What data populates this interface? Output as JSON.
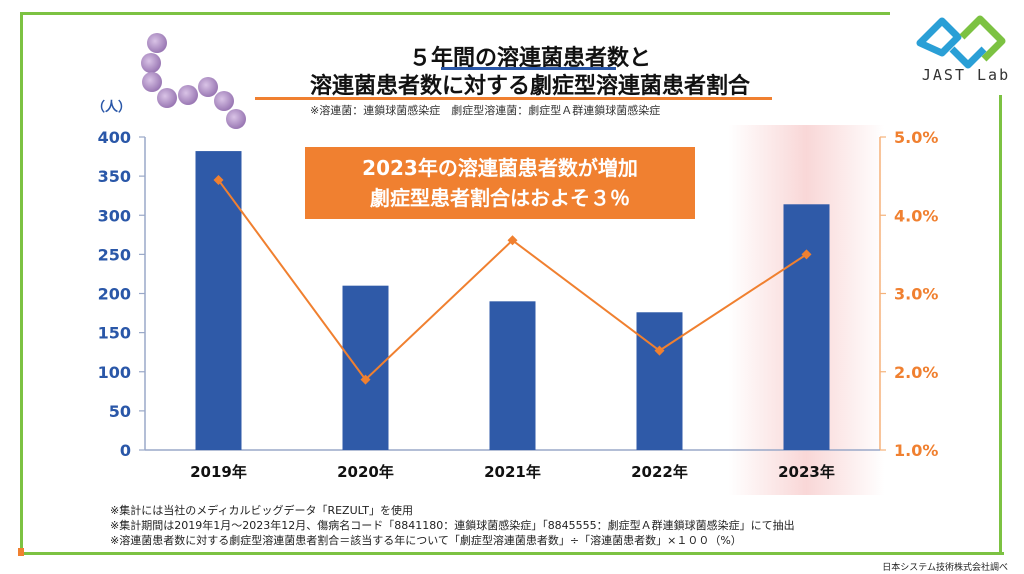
{
  "title": {
    "line1": "５年間の溶連菌患者数と",
    "line2": "溶連菌患者数に対する劇症型溶連菌患者割合"
  },
  "subnote": "※溶連菌：連鎖球菌感染症　劇症型溶連菌：劇症型Ａ群連鎖球菌感染症",
  "callout": {
    "line1": "2023年の溶連菌患者数が増加",
    "line2": "劇症型患者割合はおよそ３％"
  },
  "footnotes": [
    "※集計には当社のメディカルビッグデータ「REZULT」を使用",
    "※集計期間は2019年1月～2023年12月、傷病名コード「8841180：連鎖球菌感染症」「8845555：劇症型Ａ群連鎖球菌感染症」にて抽出",
    "※溶連菌患者数に対する劇症型溶連菌患者割合＝該当する年について「劇症型溶連菌患者数」÷「溶連菌患者数」×１００（%）"
  ],
  "credit": "日本システム技術株式会社調べ",
  "logo": {
    "text": "JAST Lab",
    "colors": [
      "#2a9fd6",
      "#7cc242"
    ]
  },
  "colors": {
    "bar": "#2f5aa8",
    "line": "#f08030",
    "frame": "#7cc242",
    "highlight": "#f6c6c6"
  },
  "chart_data": {
    "type": "bar",
    "categories": [
      "2019年",
      "2020年",
      "2021年",
      "2022年",
      "2023年"
    ],
    "series": [
      {
        "type": "bar",
        "axis": "left",
        "values": [
          382,
          210,
          190,
          176,
          314
        ]
      },
      {
        "type": "line",
        "axis": "right",
        "values": [
          4.45,
          1.9,
          3.68,
          2.27,
          3.5
        ]
      }
    ],
    "ylabel_left": "（人）",
    "ylim_left": [
      0,
      400
    ],
    "yticks_left": [
      "0",
      "50",
      "100",
      "150",
      "200",
      "250",
      "300",
      "350",
      "400"
    ],
    "ylim_right": [
      1.0,
      5.0
    ],
    "yticks_right": [
      "1.0%",
      "2.0%",
      "3.0%",
      "4.0%",
      "5.0%"
    ],
    "highlight_category": "2023年",
    "grid": false
  }
}
